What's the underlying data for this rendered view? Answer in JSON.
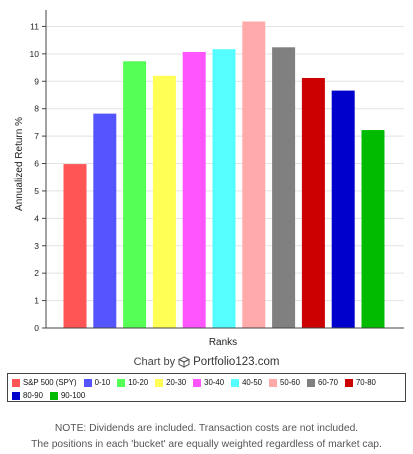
{
  "chart_data": {
    "type": "bar",
    "categories": [
      "S&P 500 (SPY)",
      "0-10",
      "10-20",
      "20-30",
      "30-40",
      "40-50",
      "50-60",
      "60-70",
      "70-80",
      "80-90",
      "90-100"
    ],
    "values": [
      5.98,
      7.82,
      9.73,
      9.2,
      10.07,
      10.17,
      11.18,
      10.24,
      9.12,
      8.66,
      7.22
    ],
    "colors": [
      "#ff5555",
      "#5555ff",
      "#55ff55",
      "#ffff55",
      "#ff55ff",
      "#55ffff",
      "#ffaaaa",
      "#808080",
      "#cc0000",
      "#0000cc",
      "#00bb00"
    ],
    "xlabel": "Ranks",
    "ylabel": "Annualized Return %",
    "ylim": [
      0,
      11.6
    ],
    "yticks": [
      "0",
      "1",
      "2",
      "3",
      "4",
      "5",
      "6",
      "7",
      "8",
      "9",
      "10",
      "11"
    ],
    "grid": true,
    "legend_position": "bottom"
  },
  "credit": {
    "prefix": "Chart by",
    "brand": "Portfolio123.com"
  },
  "notes": {
    "line1": "NOTE: Dividends are included. Transaction costs are not included.",
    "line2": "The positions in each 'bucket' are equally weighted regardless of market cap."
  },
  "icons": {
    "credit_logo": "cube-icon"
  }
}
